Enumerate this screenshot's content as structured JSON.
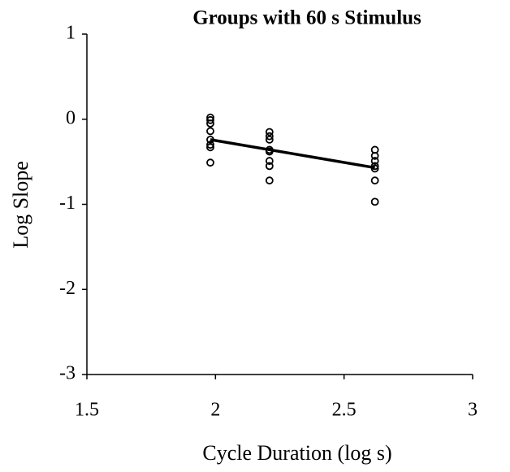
{
  "chart_data": {
    "type": "scatter",
    "title": "Groups with 60 s Stimulus",
    "x_label": "Cycle Duration (log s)",
    "y_label": "Log Slope",
    "xlim": [
      1.5,
      3
    ],
    "xticks": [
      1.5,
      2,
      2.5,
      3
    ],
    "ylim": [
      -3,
      1
    ],
    "yticks": [
      1,
      0,
      -1,
      -2,
      -3
    ],
    "color": "#000000",
    "x": [
      1.98,
      1.98,
      1.98,
      1.98,
      1.98,
      1.98,
      1.98,
      1.98,
      2.21,
      2.21,
      2.21,
      2.21,
      2.21,
      2.21,
      2.21,
      2.21,
      2.62,
      2.62,
      2.62,
      2.62,
      2.62,
      2.62,
      2.62
    ],
    "values": [
      0.02,
      -0.01,
      -0.05,
      -0.14,
      -0.24,
      -0.3,
      -0.33,
      -0.51,
      -0.15,
      -0.2,
      -0.24,
      -0.36,
      -0.38,
      -0.49,
      -0.55,
      -0.72,
      -0.36,
      -0.43,
      -0.49,
      -0.55,
      -0.58,
      -0.72,
      -0.97
    ],
    "fit": {
      "x": [
        1.98,
        2.62
      ],
      "values": [
        -0.24,
        -0.57
      ]
    }
  }
}
